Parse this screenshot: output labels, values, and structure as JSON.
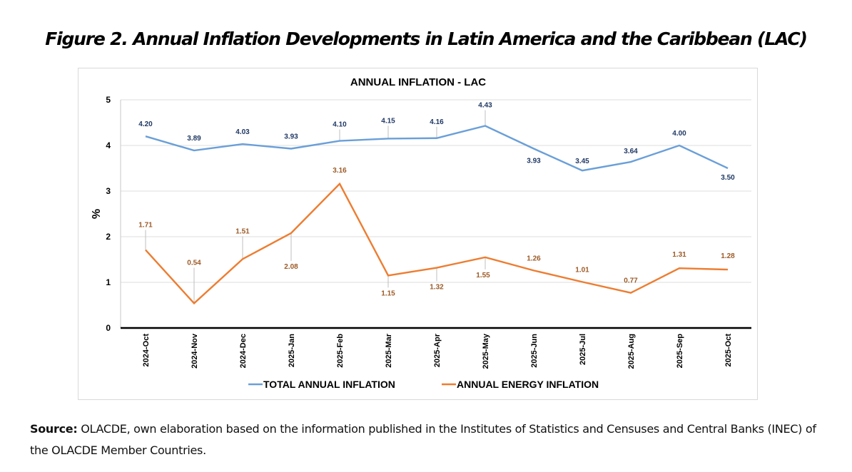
{
  "figure": {
    "title": "Figure 2. Annual Inflation Developments in Latin America and the Caribbean (LAC)",
    "source_label": "Source:",
    "source_text": " OLACDE, own elaboration based on the information published in the Institutes of Statistics and Censuses and Central Banks (INEC) of the OLACDE Member Countries."
  },
  "chart_data": {
    "type": "line",
    "title": "ANNUAL INFLATION  - LAC",
    "xlabel": "",
    "ylabel": "%",
    "ylim": [
      0,
      5
    ],
    "yticks": [
      0,
      1,
      2,
      3,
      4,
      5
    ],
    "grid": true,
    "legend_position": "bottom",
    "categories": [
      "2024-Oct",
      "2024-Nov",
      "2024-Dec",
      "2025-Jan",
      "2025-Feb",
      "2025-Mar",
      "2025-Apr",
      "2025-May",
      "2025-Jun",
      "2025-Jul",
      "2025-Aug",
      "2025-Sep",
      "2025-Oct"
    ],
    "series": [
      {
        "name": "TOTAL ANNUAL INFLATION",
        "color": "#6a9fd8",
        "label_color": "#1f3864",
        "values": [
          4.2,
          3.89,
          4.03,
          3.93,
          4.1,
          4.15,
          4.16,
          4.43,
          3.93,
          3.45,
          3.64,
          4.0,
          3.5
        ],
        "labels": [
          "4.20",
          "3.89",
          "4.03",
          "3.93",
          "4.10",
          "4.15",
          "4.16",
          "4.43",
          "3.93",
          "3.45",
          "3.64",
          "4.00",
          "3.50"
        ]
      },
      {
        "name": "ANNUAL ENERGY INFLATION",
        "color": "#ed7d31",
        "label_color": "#9c5a26",
        "values": [
          1.71,
          0.54,
          1.51,
          2.08,
          3.16,
          1.15,
          1.32,
          1.55,
          1.26,
          1.01,
          0.77,
          1.31,
          1.28
        ],
        "labels": [
          "1.71",
          "0.54",
          "1.51",
          "2.08",
          "3.16",
          "1.15",
          "1.32",
          "1.55",
          "1.26",
          "1.01",
          "0.77",
          "1.31",
          "1.28"
        ]
      }
    ]
  }
}
